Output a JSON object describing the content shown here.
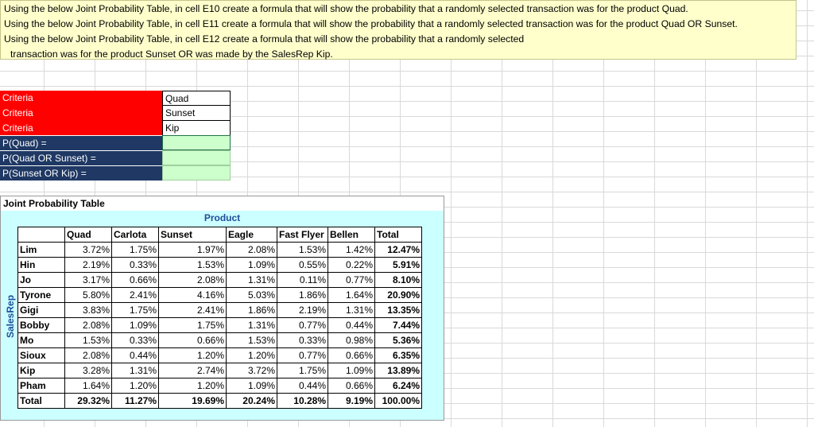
{
  "instructions": [
    "Using the below Joint Probability Table, in cell E10 create a formula that will show the probability that a randomly selected transaction was for the product Quad.",
    "Using the below Joint Probability Table, in cell E11 create a formula that will show the probability that a randomly selected transaction was for the product Quad OR Sunset.",
    "Using the below Joint Probability Table, in cell E12 create a formula that will show the probability that a randomly selected",
    "transaction was for the product Sunset OR was made by the SalesRep Kip."
  ],
  "criteria": [
    {
      "label": "Criteria",
      "value": "Quad"
    },
    {
      "label": "Criteria",
      "value": "Sunset"
    },
    {
      "label": "Criteria",
      "value": "Kip"
    }
  ],
  "probabilities": [
    {
      "label": "P(Quad) =",
      "value": ""
    },
    {
      "label": "P(Quad OR Sunset) =",
      "value": ""
    },
    {
      "label": "P(Sunset OR Kip) =",
      "value": ""
    }
  ],
  "joint_table": {
    "title": "Joint Probability Table",
    "column_group_label": "Product",
    "row_group_label": "SalesRep",
    "columns": [
      "Quad",
      "Carlota",
      "Sunset",
      "Eagle",
      "Fast Flyer",
      "Bellen",
      "Total"
    ],
    "rows": [
      {
        "name": "Lim",
        "values": [
          "3.72%",
          "1.75%",
          "1.97%",
          "2.08%",
          "1.53%",
          "1.42%",
          "12.47%"
        ]
      },
      {
        "name": "Hin",
        "values": [
          "2.19%",
          "0.33%",
          "1.53%",
          "1.09%",
          "0.55%",
          "0.22%",
          "5.91%"
        ]
      },
      {
        "name": "Jo",
        "values": [
          "3.17%",
          "0.66%",
          "2.08%",
          "1.31%",
          "0.11%",
          "0.77%",
          "8.10%"
        ]
      },
      {
        "name": "Tyrone",
        "values": [
          "5.80%",
          "2.41%",
          "4.16%",
          "5.03%",
          "1.86%",
          "1.64%",
          "20.90%"
        ]
      },
      {
        "name": "Gigi",
        "values": [
          "3.83%",
          "1.75%",
          "2.41%",
          "1.86%",
          "2.19%",
          "1.31%",
          "13.35%"
        ]
      },
      {
        "name": "Bobby",
        "values": [
          "2.08%",
          "1.09%",
          "1.75%",
          "1.31%",
          "0.77%",
          "0.44%",
          "7.44%"
        ]
      },
      {
        "name": "Mo",
        "values": [
          "1.53%",
          "0.33%",
          "0.66%",
          "1.53%",
          "0.33%",
          "0.98%",
          "5.36%"
        ]
      },
      {
        "name": "Sioux",
        "values": [
          "2.08%",
          "0.44%",
          "1.20%",
          "1.20%",
          "0.77%",
          "0.66%",
          "6.35%"
        ]
      },
      {
        "name": "Kip",
        "values": [
          "3.28%",
          "1.31%",
          "2.74%",
          "3.72%",
          "1.75%",
          "1.09%",
          "13.89%"
        ]
      },
      {
        "name": "Pham",
        "values": [
          "1.64%",
          "1.20%",
          "1.20%",
          "1.09%",
          "0.44%",
          "0.66%",
          "6.24%"
        ]
      }
    ],
    "total_row": {
      "name": "Total",
      "values": [
        "29.32%",
        "11.27%",
        "19.69%",
        "20.24%",
        "10.28%",
        "9.19%",
        "100.00%"
      ]
    }
  },
  "colors": {
    "criteria_bg": "#ff0000",
    "prob_label_bg": "#1f3864",
    "input_cell_bg": "#ccffcc",
    "instruction_bg": "#ffffcc",
    "table_panel_bg": "#ccffff",
    "header_text": "#1f4e9b"
  }
}
